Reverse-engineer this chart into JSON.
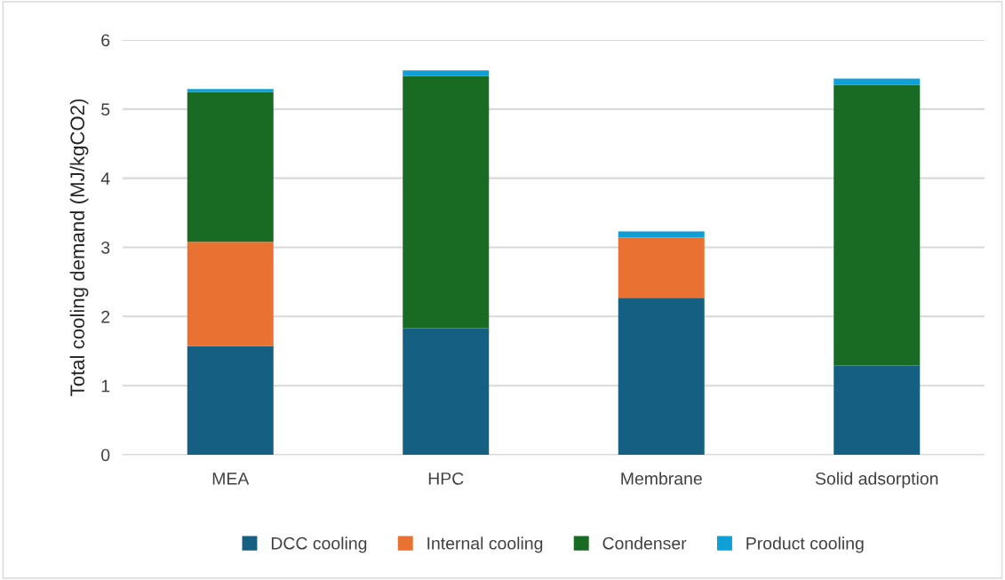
{
  "chart_data": {
    "type": "bar",
    "stacked": true,
    "ylabel": "Total cooling demand (MJ/kgCO2)",
    "categories": [
      "MEA",
      "HPC",
      "Membrane",
      "Solid adsorption"
    ],
    "series": [
      {
        "name": "DCC cooling",
        "color": "#156082",
        "values": [
          1.57,
          1.83,
          2.27,
          1.29
        ]
      },
      {
        "name": "Internal cooling",
        "color": "#e97132",
        "values": [
          1.51,
          0,
          0.87,
          0
        ]
      },
      {
        "name": "Condenser",
        "color": "#196b24",
        "values": [
          2.17,
          3.65,
          0,
          4.06
        ]
      },
      {
        "name": "Product cooling",
        "color": "#0f9ed5",
        "values": [
          0.04,
          0.08,
          0.09,
          0.09
        ]
      }
    ],
    "ylim": [
      0,
      6
    ],
    "yticks": [
      0,
      1,
      2,
      3,
      4,
      5,
      6
    ],
    "grid": "y",
    "legend": "bottom"
  }
}
